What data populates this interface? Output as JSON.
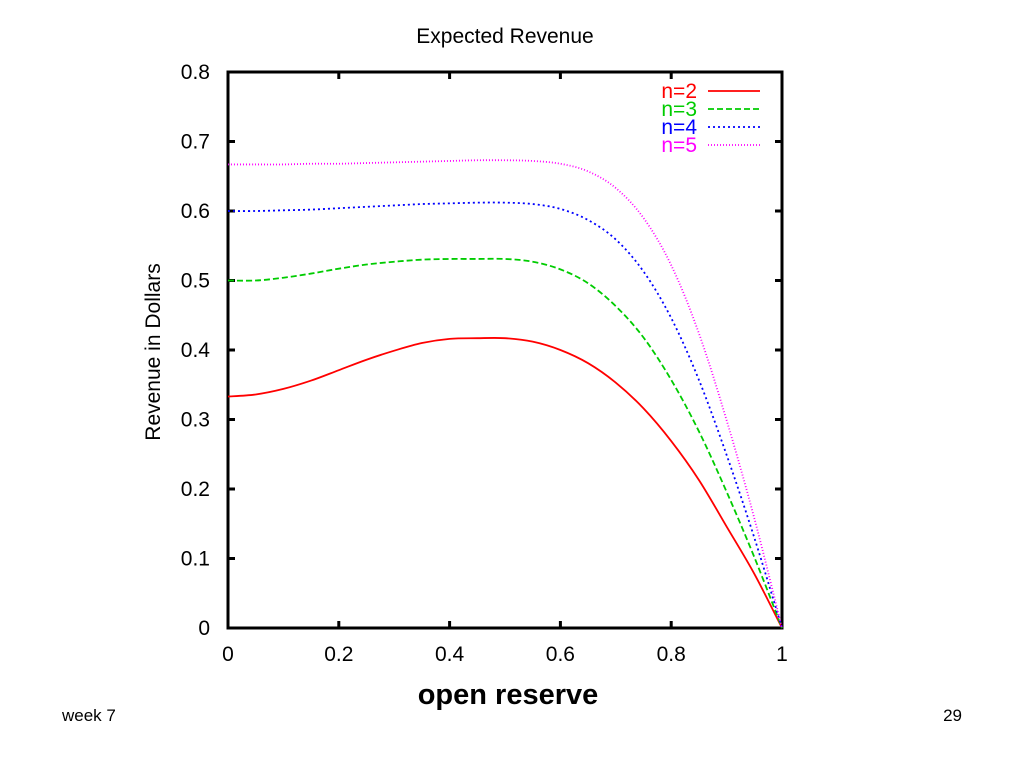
{
  "slide": {
    "footer_left": "week 7",
    "page_number": "29"
  },
  "chart_data": {
    "type": "line",
    "title": "Expected Revenue",
    "xlabel": "open reserve",
    "ylabel": "Revenue in Dollars",
    "xlim": [
      0,
      1
    ],
    "ylim": [
      0,
      0.8
    ],
    "xticks": [
      "0",
      "0.2",
      "0.4",
      "0.6",
      "0.8",
      "1"
    ],
    "yticks": [
      "0",
      "0.1",
      "0.2",
      "0.3",
      "0.4",
      "0.5",
      "0.6",
      "0.7",
      "0.8"
    ],
    "grid": false,
    "legend_position": "top-right",
    "x": [
      0,
      0.05,
      0.1,
      0.15,
      0.2,
      0.25,
      0.3,
      0.35,
      0.4,
      0.45,
      0.5,
      0.55,
      0.6,
      0.65,
      0.7,
      0.75,
      0.8,
      0.85,
      0.9,
      0.95,
      1.0
    ],
    "series": [
      {
        "name": "n=2",
        "color": "#ff0000",
        "dash": "solid",
        "values": [
          0.333,
          0.336,
          0.344,
          0.356,
          0.371,
          0.386,
          0.399,
          0.41,
          0.416,
          0.417,
          0.417,
          0.412,
          0.4,
          0.381,
          0.353,
          0.316,
          0.269,
          0.213,
          0.146,
          0.078,
          0.0
        ]
      },
      {
        "name": "n=3",
        "color": "#00cc00",
        "dash": "dashed",
        "values": [
          0.5,
          0.5,
          0.504,
          0.51,
          0.517,
          0.523,
          0.527,
          0.53,
          0.531,
          0.531,
          0.531,
          0.527,
          0.516,
          0.496,
          0.463,
          0.418,
          0.357,
          0.283,
          0.196,
          0.102,
          0.0
        ]
      },
      {
        "name": "n=4",
        "color": "#0000ff",
        "dash": "dotted",
        "values": [
          0.6,
          0.6,
          0.601,
          0.602,
          0.604,
          0.606,
          0.608,
          0.61,
          0.611,
          0.612,
          0.612,
          0.61,
          0.603,
          0.587,
          0.559,
          0.513,
          0.446,
          0.357,
          0.249,
          0.13,
          0.0
        ]
      },
      {
        "name": "n=5",
        "color": "#ff00ff",
        "dash": "densely-dotted",
        "values": [
          0.667,
          0.667,
          0.667,
          0.668,
          0.668,
          0.669,
          0.67,
          0.671,
          0.672,
          0.673,
          0.673,
          0.672,
          0.668,
          0.657,
          0.633,
          0.59,
          0.522,
          0.424,
          0.299,
          0.158,
          0.0
        ]
      }
    ]
  }
}
